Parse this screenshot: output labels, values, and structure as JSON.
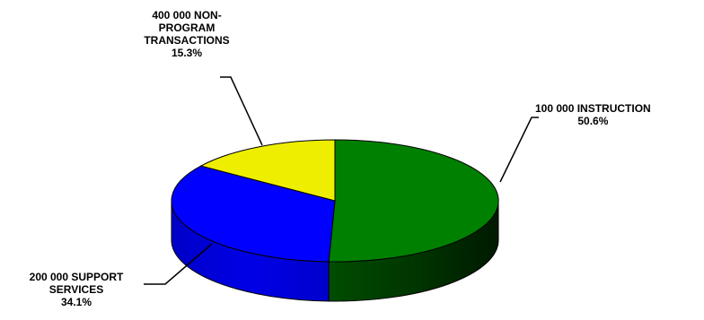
{
  "chart_data": {
    "type": "pie",
    "style": "3d",
    "slices": [
      {
        "label": "100 000 INSTRUCTION",
        "percent": "50.6%",
        "value": 50.6,
        "color": "#008000"
      },
      {
        "label": "200 000 SUPPORT SERVICES",
        "percent": "34.1%",
        "value": 34.1,
        "color": "#0000FF"
      },
      {
        "label": "400 000 NON-PROGRAM TRANSACTIONS",
        "percent": "15.3%",
        "value": 15.3,
        "color": "#EEEE00"
      }
    ]
  }
}
